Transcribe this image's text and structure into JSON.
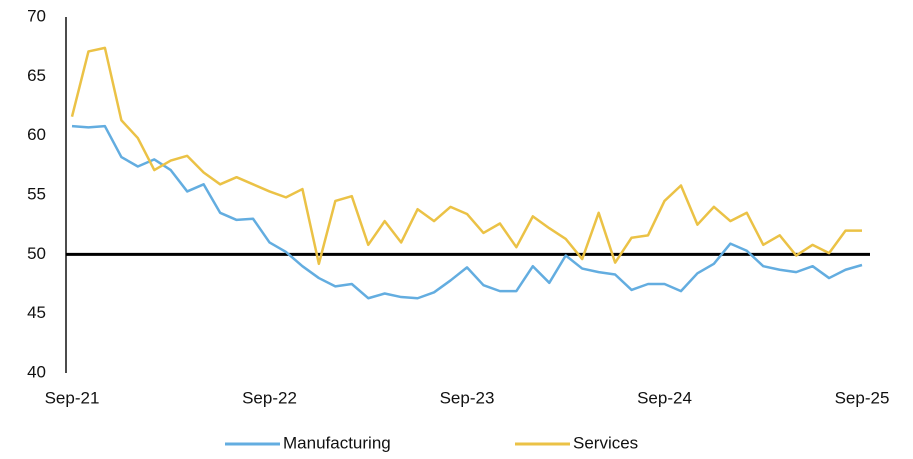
{
  "chart_data": {
    "type": "line",
    "categories": [
      "Sep-21",
      null,
      null,
      null,
      null,
      null,
      null,
      null,
      null,
      null,
      null,
      null,
      "Sep-22",
      null,
      null,
      null,
      null,
      null,
      null,
      null,
      null,
      null,
      null,
      null,
      "Sep-23",
      null,
      null,
      null,
      null,
      null,
      null,
      null,
      null,
      null,
      null,
      null,
      "Sep-24",
      null,
      null,
      null,
      null,
      null,
      null,
      null,
      null,
      null,
      null,
      null,
      "Sep-25"
    ],
    "series": [
      {
        "name": "Manufacturing",
        "color": "#63ade0",
        "values": [
          60.8,
          60.7,
          60.8,
          58.2,
          57.4,
          58.0,
          57.1,
          55.3,
          55.9,
          53.5,
          52.9,
          53.0,
          51.0,
          50.2,
          49.0,
          48.0,
          47.3,
          47.5,
          46.3,
          46.7,
          46.4,
          46.3,
          46.8,
          47.8,
          48.9,
          47.4,
          46.9,
          46.9,
          49.0,
          47.6,
          49.9,
          48.8,
          48.5,
          48.3,
          47.0,
          47.5,
          47.5,
          46.9,
          48.4,
          49.2,
          50.9,
          50.3,
          49.0,
          48.7,
          48.5,
          49.0,
          48.0,
          48.7,
          49.1
        ]
      },
      {
        "name": "Services",
        "color": "#ebc246",
        "values": [
          61.6,
          67.1,
          67.4,
          61.3,
          59.8,
          57.1,
          57.9,
          58.3,
          56.9,
          55.9,
          56.5,
          55.9,
          55.3,
          54.8,
          55.5,
          49.2,
          54.5,
          54.9,
          50.8,
          52.8,
          51.0,
          53.8,
          52.8,
          54.0,
          53.4,
          51.8,
          52.6,
          50.6,
          53.2,
          52.2,
          51.3,
          49.6,
          53.5,
          49.3,
          51.4,
          51.6,
          54.5,
          55.8,
          52.5,
          54.0,
          52.8,
          53.5,
          50.8,
          51.6,
          49.9,
          50.8,
          50.1,
          52.0,
          52.0
        ]
      }
    ],
    "reference_line": 50,
    "ylim": [
      40,
      70
    ],
    "yticks": [
      40,
      45,
      50,
      55,
      60,
      65,
      70
    ],
    "legend": "bottom"
  }
}
